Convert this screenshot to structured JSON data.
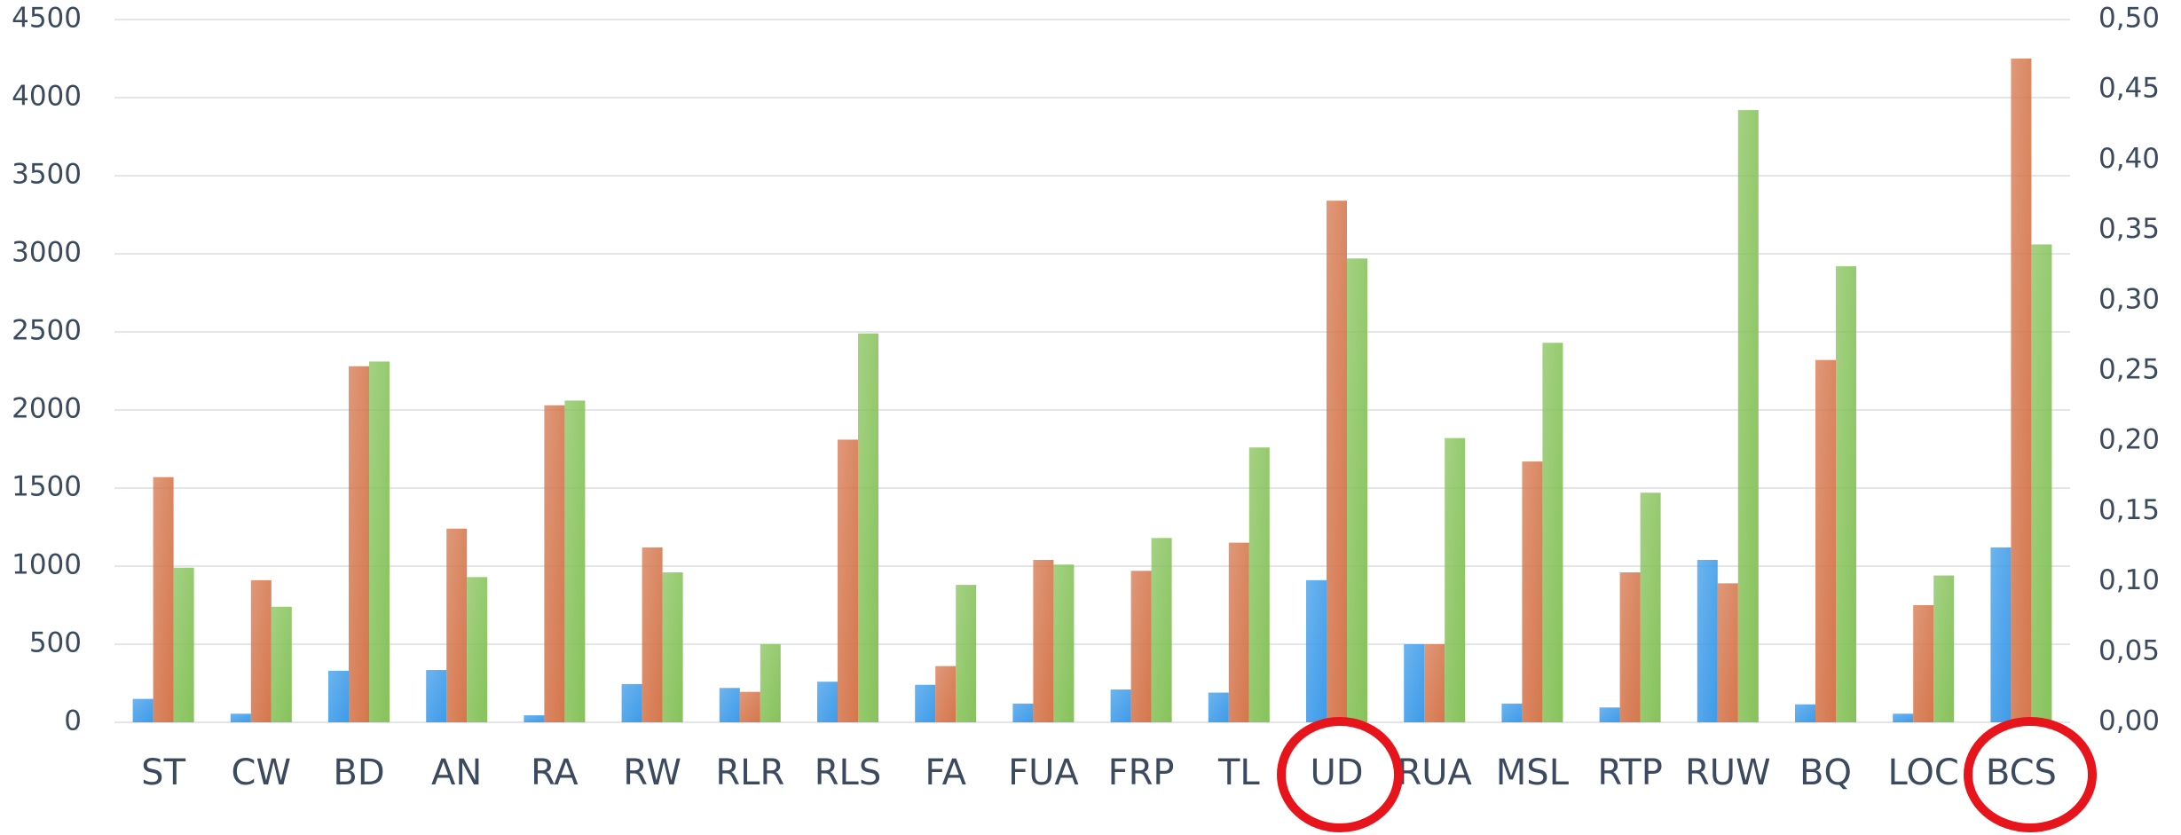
{
  "chart_data": {
    "type": "bar",
    "categories": [
      "ST",
      "CW",
      "BD",
      "AN",
      "RA",
      "RW",
      "RLR",
      "RLS",
      "FA",
      "FUA",
      "FRP",
      "TL",
      "UD",
      "RUA",
      "MSL",
      "RTP",
      "RUW",
      "BQ",
      "LOC",
      "BCS"
    ],
    "series": [
      {
        "color": "#3d9be9",
        "values": [
          150,
          55,
          330,
          335,
          45,
          245,
          220,
          260,
          240,
          120,
          210,
          190,
          910,
          500,
          120,
          95,
          1040,
          115,
          55,
          1120
        ]
      },
      {
        "color": "#d5764c",
        "values": [
          1570,
          910,
          2280,
          1240,
          2030,
          1120,
          195,
          1810,
          360,
          1040,
          970,
          1150,
          3340,
          500,
          1670,
          960,
          890,
          2320,
          750,
          4250
        ]
      },
      {
        "color": "#86c25a",
        "values": [
          990,
          740,
          2310,
          930,
          2060,
          960,
          500,
          2490,
          880,
          1010,
          1180,
          1760,
          2970,
          1820,
          2430,
          1470,
          3920,
          2920,
          940,
          3060
        ]
      }
    ],
    "ylim": [
      0,
      4500
    ],
    "yticks": [
      0,
      500,
      1000,
      1500,
      2000,
      2500,
      3000,
      3500,
      4000,
      4500
    ],
    "y2lim": [
      0,
      0.5
    ],
    "y2ticks": [
      {
        "value": 0,
        "label": "0,00"
      },
      {
        "value": 0.05,
        "label": "0,05"
      },
      {
        "value": 0.1,
        "label": "0,10"
      },
      {
        "value": 0.15,
        "label": "0,15"
      },
      {
        "value": 0.2,
        "label": "0,20"
      },
      {
        "value": 0.25,
        "label": "0,25"
      },
      {
        "value": 0.3,
        "label": "0,30"
      },
      {
        "value": 0.35,
        "label": "0,35"
      },
      {
        "value": 0.4,
        "label": "0,40"
      },
      {
        "value": 0.45,
        "label": "0,45"
      },
      {
        "value": 0.5,
        "label": "0,50"
      }
    ],
    "grid": true
  }
}
